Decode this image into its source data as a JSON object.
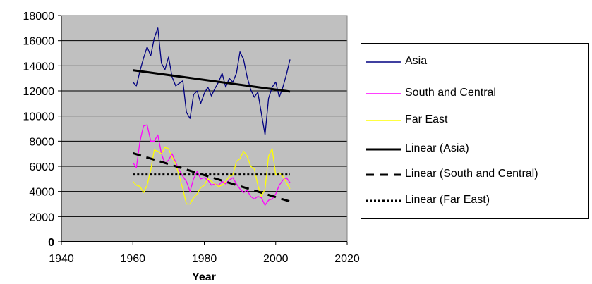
{
  "chart_data": {
    "type": "line",
    "title": "",
    "xlabel": "Year",
    "ylabel": "",
    "xlim": [
      1940,
      2020
    ],
    "ylim": [
      0,
      18000
    ],
    "xticks": [
      1940,
      1960,
      1980,
      2000,
      2020
    ],
    "yticks": [
      0,
      2000,
      4000,
      6000,
      8000,
      10000,
      12000,
      14000,
      16000,
      18000
    ],
    "xtick_labels": [
      "1940",
      "1960",
      "1980",
      "2000",
      "2020"
    ],
    "ytick_labels": [
      "0",
      "2000",
      "4000",
      "6000",
      "8000",
      "10000",
      "12000",
      "14000",
      "16000",
      "18000"
    ],
    "plot_background": "#c0c0c0",
    "grid": "horizontal",
    "legend_position": "right",
    "series": [
      {
        "name": "Asia",
        "color": "#000080",
        "style": "solid",
        "x": [
          1960,
          1961,
          1962,
          1963,
          1964,
          1965,
          1966,
          1967,
          1968,
          1969,
          1970,
          1971,
          1972,
          1973,
          1974,
          1975,
          1976,
          1977,
          1978,
          1979,
          1980,
          1981,
          1982,
          1983,
          1984,
          1985,
          1986,
          1987,
          1988,
          1989,
          1990,
          1991,
          1992,
          1993,
          1994,
          1995,
          1996,
          1997,
          1998,
          1999,
          2000,
          2001,
          2002,
          2003,
          2004
        ],
        "y": [
          12700,
          12400,
          13600,
          14600,
          15500,
          14800,
          16200,
          17000,
          14200,
          13700,
          14700,
          13100,
          12400,
          12600,
          12800,
          10300,
          9800,
          11700,
          12000,
          11000,
          11800,
          12300,
          11600,
          12200,
          12700,
          13400,
          12300,
          13000,
          12700,
          13400,
          15100,
          14500,
          13100,
          12100,
          11500,
          11900,
          10200,
          8500,
          11400,
          12300,
          12700,
          11500,
          12300,
          13300,
          14500
        ]
      },
      {
        "name": "South and Central",
        "color": "#ff00ff",
        "style": "solid",
        "x": [
          1960,
          1961,
          1962,
          1963,
          1964,
          1965,
          1966,
          1967,
          1968,
          1969,
          1970,
          1971,
          1972,
          1973,
          1974,
          1975,
          1976,
          1977,
          1978,
          1979,
          1980,
          1981,
          1982,
          1983,
          1984,
          1985,
          1986,
          1987,
          1988,
          1989,
          1990,
          1991,
          1992,
          1993,
          1994,
          1995,
          1996,
          1997,
          1998,
          1999,
          2000,
          2001,
          2002,
          2003,
          2004
        ],
        "y": [
          6300,
          5900,
          8000,
          9200,
          9300,
          8000,
          8000,
          8500,
          7000,
          6200,
          6500,
          7000,
          6300,
          5700,
          5200,
          4800,
          4000,
          5000,
          5600,
          5000,
          5100,
          4900,
          4500,
          4600,
          4500,
          4800,
          4600,
          4900,
          5100,
          4600,
          4200,
          3900,
          4100,
          3600,
          3400,
          3600,
          3500,
          2900,
          3300,
          3400,
          3800,
          4500,
          4900,
          5100,
          4700
        ]
      },
      {
        "name": "Far East",
        "color": "#ffff00",
        "style": "solid",
        "x": [
          1960,
          1961,
          1962,
          1963,
          1964,
          1965,
          1966,
          1967,
          1968,
          1969,
          1970,
          1971,
          1972,
          1973,
          1974,
          1975,
          1976,
          1977,
          1978,
          1979,
          1980,
          1981,
          1982,
          1983,
          1984,
          1985,
          1986,
          1987,
          1988,
          1989,
          1990,
          1991,
          1992,
          1993,
          1994,
          1995,
          1996,
          1997,
          1998,
          1999,
          2000,
          2001,
          2002,
          2003,
          2004
        ],
        "y": [
          4800,
          4500,
          4400,
          3900,
          4500,
          5700,
          7300,
          7200,
          7000,
          7500,
          7400,
          6700,
          6200,
          5200,
          4200,
          3000,
          3000,
          3500,
          3800,
          4300,
          4500,
          5000,
          4800,
          4600,
          4400,
          4500,
          4800,
          5200,
          5300,
          6400,
          6600,
          7200,
          6800,
          6000,
          5800,
          4500,
          3600,
          4200,
          6800,
          7400,
          5300,
          5500,
          5200,
          4700,
          4200
        ]
      },
      {
        "name": "Linear (Asia)",
        "color": "#000000",
        "style": "solid",
        "x": [
          1960,
          2004
        ],
        "y": [
          13650,
          11950
        ]
      },
      {
        "name": "Linear (South and Central)",
        "color": "#000000",
        "style": "dashed",
        "x": [
          1960,
          2004
        ],
        "y": [
          7050,
          3200
        ]
      },
      {
        "name": "Linear (Far East)",
        "color": "#000000",
        "style": "dotted",
        "x": [
          1960,
          2004
        ],
        "y": [
          5350,
          5350
        ]
      }
    ]
  }
}
